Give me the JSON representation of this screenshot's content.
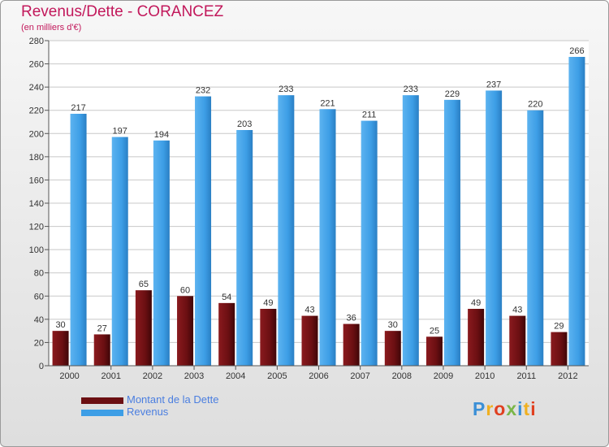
{
  "header": {
    "title": "Revenus/Dette - CORANCEZ",
    "subtitle": "(en milliers d'€)"
  },
  "legend": {
    "items": [
      {
        "label": "Montant de la Dette",
        "color": "#6b0f12"
      },
      {
        "label": "Revenus",
        "color": "#3d9ee6"
      }
    ]
  },
  "logo": {
    "text": "Proxiti",
    "colors": [
      "#3a8fd6",
      "#f0b020",
      "#e04020",
      "#7ab648",
      "#3a8fd6",
      "#f0b020",
      "#e04020"
    ]
  },
  "colors": {
    "dette": "#6b0f12",
    "revenus": "#3d9ee6",
    "title": "#c2185b",
    "grid": "#c8c8c8"
  },
  "chart_data": {
    "type": "bar",
    "title": "Revenus/Dette - CORANCEZ",
    "subtitle": "(en milliers d'€)",
    "xlabel": "",
    "ylabel": "",
    "ylim": [
      0,
      280
    ],
    "yticks": [
      0,
      20,
      40,
      60,
      80,
      100,
      120,
      140,
      160,
      180,
      200,
      220,
      240,
      260,
      280
    ],
    "grid": true,
    "legend_position": "bottom-left",
    "categories": [
      "2000",
      "2001",
      "2002",
      "2003",
      "2004",
      "2005",
      "2006",
      "2007",
      "2008",
      "2009",
      "2010",
      "2011",
      "2012"
    ],
    "series": [
      {
        "name": "Montant de la Dette",
        "values": [
          30,
          27,
          65,
          60,
          54,
          49,
          43,
          36,
          30,
          25,
          49,
          43,
          29
        ]
      },
      {
        "name": "Revenus",
        "values": [
          217,
          197,
          194,
          232,
          203,
          233,
          221,
          211,
          233,
          229,
          237,
          220,
          266
        ]
      }
    ]
  }
}
